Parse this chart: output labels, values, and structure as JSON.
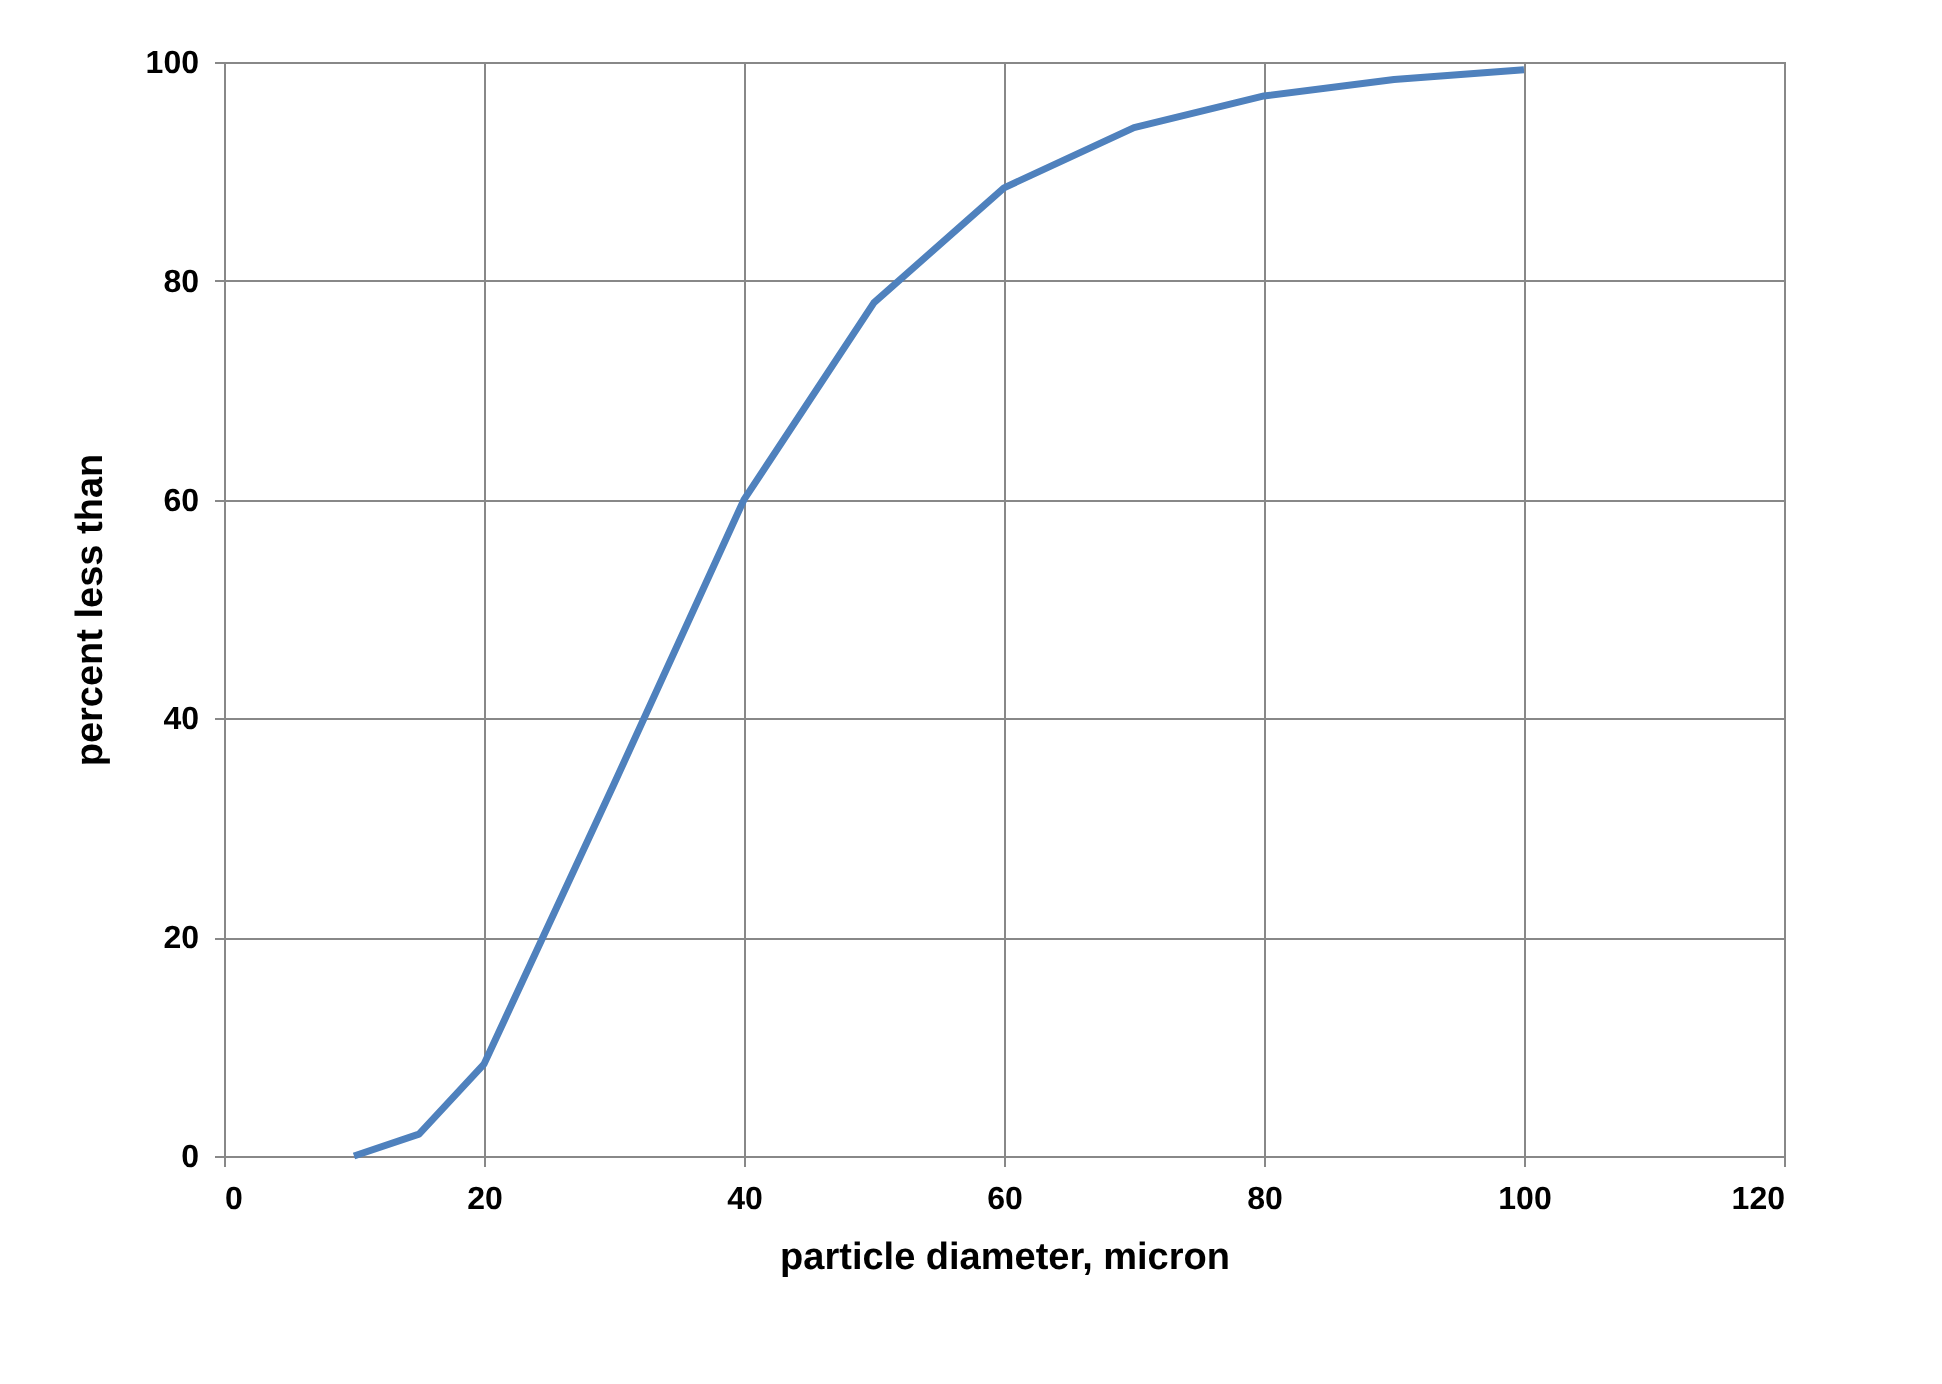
{
  "chart_data": {
    "type": "line",
    "xlabel": "particle diameter, micron",
    "ylabel": "percent less than",
    "x": [
      10,
      15,
      20,
      30,
      40,
      50,
      60,
      70,
      80,
      90,
      100
    ],
    "series": [
      {
        "color": "#4f81bd",
        "values": [
          0,
          2,
          8.4,
          34,
          60,
          78,
          88.5,
          94,
          96.9,
          98.4,
          99.3
        ]
      }
    ],
    "xlim": [
      0,
      120
    ],
    "xticks": [
      0,
      20,
      40,
      60,
      80,
      100,
      120
    ],
    "ylim": [
      0,
      100
    ],
    "yticks": [
      0,
      20,
      40,
      60,
      80,
      100
    ],
    "grid": true,
    "legend": false,
    "marker": "none",
    "line_style": "solid"
  }
}
